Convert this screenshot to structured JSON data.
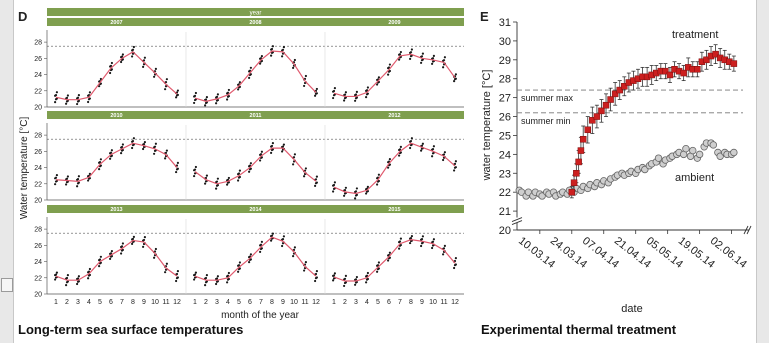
{
  "panel_d": {
    "letter": "D",
    "caption": "Long-term sea surface temperatures",
    "header_label": "year",
    "xlabel": "month of the year",
    "ylabel": "Water temperature [°C]",
    "colors": {
      "header": "#7f9f4f",
      "line": "#e05a6e",
      "dots": "#1a1a1a",
      "dashed": "#555555"
    }
  },
  "panel_e": {
    "letter": "E",
    "caption": "Experimental thermal treatment",
    "ann_treatment": "treatment",
    "ann_ambient": "ambient",
    "ann_summer_max": "summer max",
    "ann_summer_min": "summer min",
    "colors": {
      "treatment": "#cc1f1f",
      "ambient_fill": "#cfcfcf",
      "ambient_edge": "#666666",
      "error": "#333333"
    }
  },
  "chart_data": [
    {
      "type": "line",
      "panel": "D",
      "title": "",
      "xlabel": "month of the year",
      "ylabel": "Water temperature [°C]",
      "categories": [
        1,
        2,
        3,
        4,
        5,
        6,
        7,
        8,
        9,
        10,
        11,
        12
      ],
      "ylim": [
        20,
        29
      ],
      "yticks": [
        20,
        22,
        24,
        26,
        28
      ],
      "reference_line_dashed": 27.5,
      "series": [
        {
          "name": "2007",
          "values": [
            21.2,
            20.9,
            20.9,
            21.2,
            23.0,
            24.8,
            26.0,
            26.8,
            25.5,
            24.2,
            22.8,
            21.6
          ]
        },
        {
          "name": "2008",
          "values": [
            21.1,
            20.7,
            21.0,
            21.5,
            22.6,
            24.2,
            25.8,
            26.9,
            26.8,
            25.3,
            23.2,
            21.8
          ]
        },
        {
          "name": "2009",
          "values": [
            21.7,
            21.3,
            21.3,
            21.8,
            23.2,
            24.6,
            26.3,
            26.5,
            26.0,
            25.8,
            25.5,
            23.6
          ]
        },
        {
          "name": "2010",
          "values": [
            22.5,
            22.4,
            22.3,
            22.8,
            24.4,
            25.6,
            26.3,
            27.0,
            26.7,
            26.3,
            25.6,
            24.0
          ]
        },
        {
          "name": "2011",
          "values": [
            23.5,
            22.5,
            22.0,
            22.3,
            23.0,
            24.0,
            25.4,
            26.4,
            26.4,
            25.0,
            23.4,
            22.3
          ]
        },
        {
          "name": "2012",
          "values": [
            21.6,
            21.0,
            20.8,
            21.2,
            22.5,
            24.5,
            26.0,
            27.0,
            26.5,
            26.0,
            25.4,
            24.2
          ]
        },
        {
          "name": "2013",
          "values": [
            22.2,
            21.7,
            21.7,
            22.5,
            24.0,
            24.8,
            25.6,
            26.6,
            26.4,
            25.0,
            23.2,
            22.2
          ]
        },
        {
          "name": "2014",
          "values": [
            22.2,
            21.7,
            21.7,
            22.0,
            23.3,
            24.4,
            25.8,
            27.0,
            26.5,
            25.2,
            23.4,
            22.2
          ]
        },
        {
          "name": "2015",
          "values": [
            22.1,
            21.6,
            21.6,
            22.0,
            23.3,
            24.6,
            26.2,
            26.7,
            26.5,
            26.2,
            25.4,
            23.8
          ]
        }
      ]
    },
    {
      "type": "scatter",
      "panel": "E",
      "title": "",
      "xlabel": "date",
      "ylabel": "water temperature [°C]",
      "ylim": [
        20,
        31
      ],
      "yticks": [
        20,
        21,
        22,
        23,
        24,
        25,
        26,
        27,
        28,
        29,
        30,
        31
      ],
      "y_axis_break": [
        20,
        21
      ],
      "xtick_labels": [
        "10.03.14",
        "24.03.14",
        "07.04.14",
        "21.04.14",
        "05.05.14",
        "19.05.14",
        "02.06.14"
      ],
      "xlim": [
        "2014-02-28",
        "2014-06-07"
      ],
      "reference_lines": [
        {
          "label": "summer max",
          "y": 27.4
        },
        {
          "label": "summer min",
          "y": 26.2
        }
      ],
      "series": [
        {
          "name": "treatment",
          "x": [
            "2014-03-24",
            "2014-03-25",
            "2014-03-26",
            "2014-03-27",
            "2014-03-28",
            "2014-03-29",
            "2014-03-31",
            "2014-04-02",
            "2014-04-04",
            "2014-04-06",
            "2014-04-08",
            "2014-04-10",
            "2014-04-12",
            "2014-04-14",
            "2014-04-16",
            "2014-04-18",
            "2014-04-20",
            "2014-04-22",
            "2014-04-24",
            "2014-04-26",
            "2014-04-28",
            "2014-04-30",
            "2014-05-02",
            "2014-05-04",
            "2014-05-06",
            "2014-05-08",
            "2014-05-10",
            "2014-05-12",
            "2014-05-14",
            "2014-05-16",
            "2014-05-18",
            "2014-05-20",
            "2014-05-22",
            "2014-05-24",
            "2014-05-26",
            "2014-05-28",
            "2014-05-30",
            "2014-06-01",
            "2014-06-03"
          ],
          "y": [
            22.0,
            22.5,
            23.0,
            23.6,
            24.2,
            24.8,
            25.3,
            25.8,
            26.0,
            26.3,
            26.6,
            26.9,
            27.2,
            27.4,
            27.6,
            27.8,
            27.9,
            28.0,
            28.1,
            28.1,
            28.2,
            28.3,
            28.4,
            28.4,
            28.2,
            28.5,
            28.4,
            28.3,
            28.6,
            28.5,
            28.5,
            28.9,
            29.0,
            29.2,
            29.3,
            29.1,
            29.0,
            28.9,
            28.8
          ],
          "error": [
            0.3,
            0.4,
            0.5,
            0.6,
            0.7,
            0.7,
            0.7,
            0.7,
            0.6,
            0.6,
            0.6,
            0.6,
            0.6,
            0.5,
            0.5,
            0.5,
            0.5,
            0.5,
            0.5,
            0.5,
            0.5,
            0.4,
            0.4,
            0.4,
            0.4,
            0.4,
            0.4,
            0.4,
            0.5,
            0.4,
            0.4,
            0.5,
            0.5,
            0.5,
            0.5,
            0.5,
            0.5,
            0.4,
            0.4
          ]
        },
        {
          "name": "ambient",
          "x": [
            "2014-03-01",
            "2014-03-02",
            "2014-03-04",
            "2014-03-05",
            "2014-03-07",
            "2014-03-08",
            "2014-03-10",
            "2014-03-11",
            "2014-03-13",
            "2014-03-14",
            "2014-03-16",
            "2014-03-17",
            "2014-03-19",
            "2014-03-20",
            "2014-03-22",
            "2014-03-23",
            "2014-03-25",
            "2014-03-26",
            "2014-03-28",
            "2014-03-29",
            "2014-03-31",
            "2014-04-01",
            "2014-04-03",
            "2014-04-04",
            "2014-04-06",
            "2014-04-07",
            "2014-04-09",
            "2014-04-10",
            "2014-04-12",
            "2014-04-13",
            "2014-04-15",
            "2014-04-16",
            "2014-04-18",
            "2014-04-19",
            "2014-04-21",
            "2014-04-22",
            "2014-04-24",
            "2014-04-25",
            "2014-04-27",
            "2014-04-28",
            "2014-04-30",
            "2014-05-01",
            "2014-05-03",
            "2014-05-04",
            "2014-05-06",
            "2014-05-07",
            "2014-05-09",
            "2014-05-10",
            "2014-05-12",
            "2014-05-13",
            "2014-05-15",
            "2014-05-16",
            "2014-05-18",
            "2014-05-19",
            "2014-05-21",
            "2014-05-22",
            "2014-05-24",
            "2014-05-25",
            "2014-05-27",
            "2014-05-28",
            "2014-05-30",
            "2014-05-31",
            "2014-06-02",
            "2014-06-03"
          ],
          "y": [
            22.1,
            22.0,
            21.8,
            22.0,
            21.8,
            22.0,
            21.9,
            21.8,
            22.0,
            21.9,
            22.0,
            21.8,
            21.9,
            22.0,
            21.9,
            22.1,
            22.0,
            22.2,
            22.1,
            22.3,
            22.2,
            22.4,
            22.3,
            22.5,
            22.4,
            22.6,
            22.5,
            22.7,
            22.8,
            22.9,
            23.0,
            22.9,
            23.0,
            23.1,
            23.0,
            23.2,
            23.3,
            23.2,
            23.4,
            23.5,
            23.6,
            23.8,
            23.5,
            23.7,
            23.8,
            23.9,
            24.0,
            24.1,
            24.0,
            24.3,
            23.9,
            24.2,
            23.8,
            24.0,
            24.4,
            24.6,
            24.6,
            24.5,
            24.1,
            23.9,
            24.1,
            24.0,
            24.0,
            24.1
          ]
        }
      ]
    }
  ]
}
